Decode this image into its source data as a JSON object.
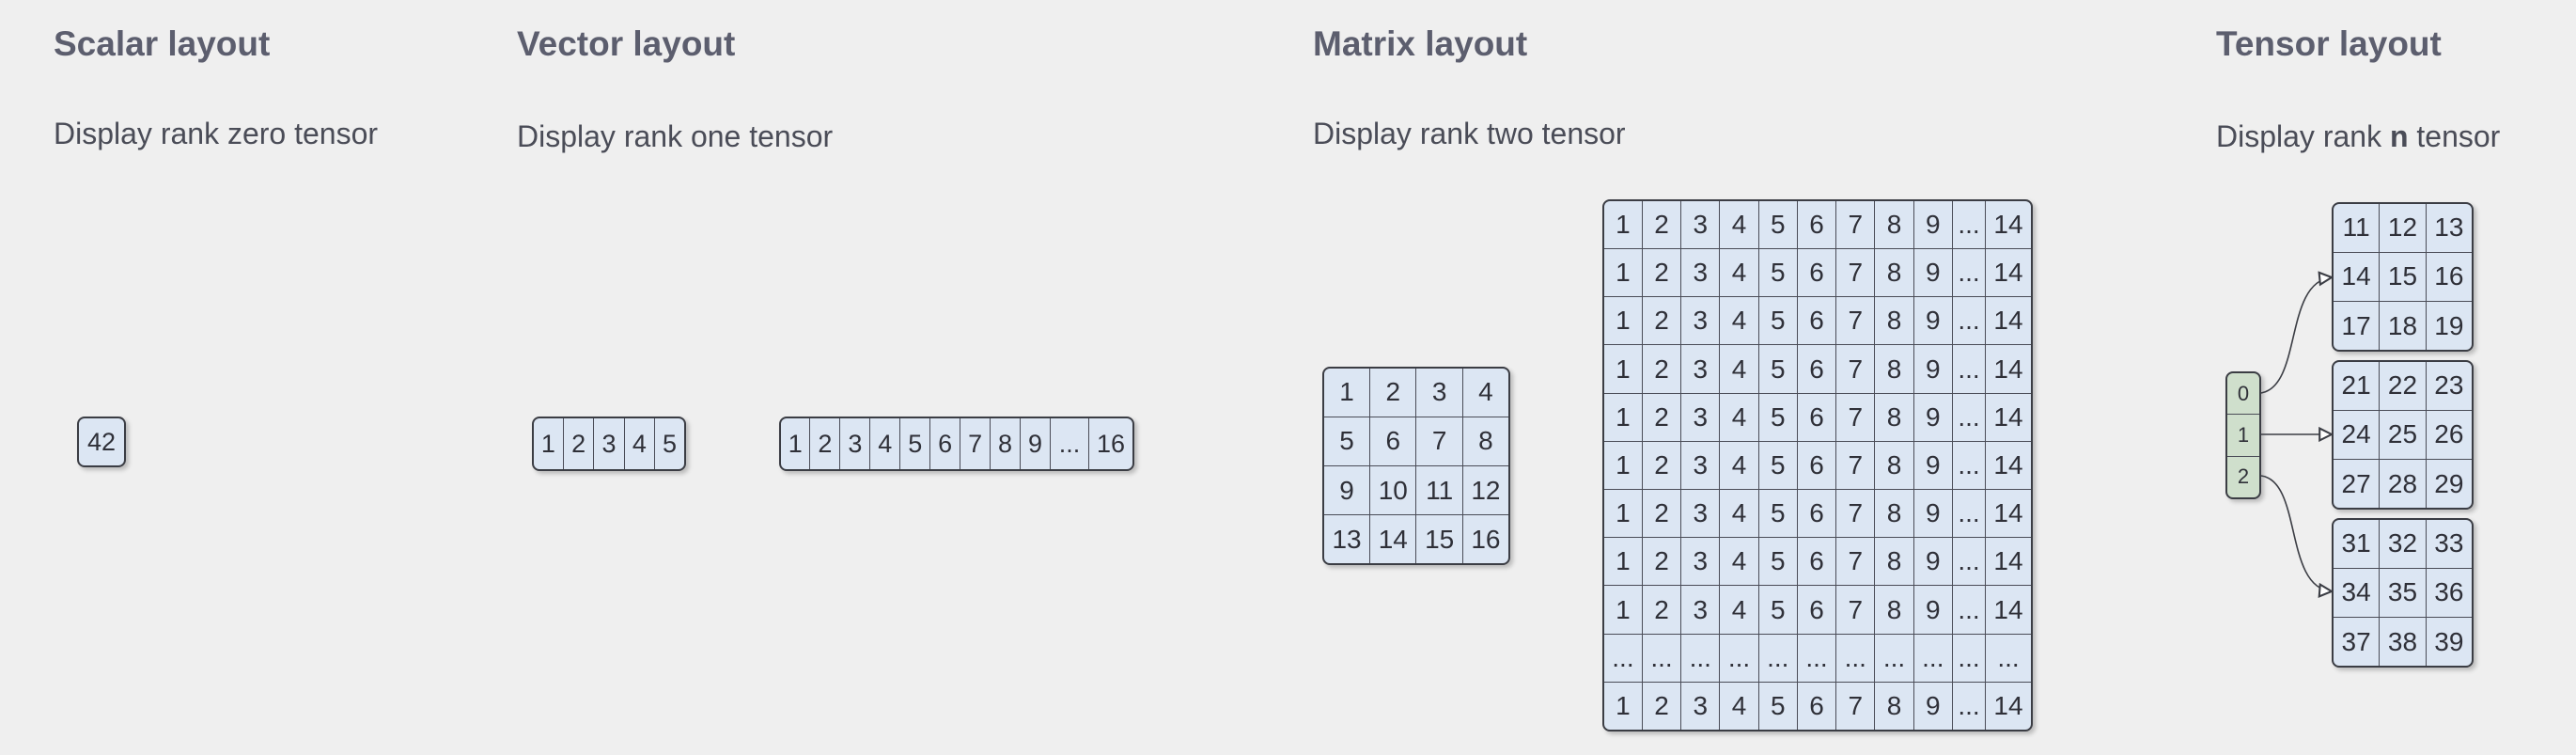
{
  "scalar": {
    "title": "Scalar layout",
    "subtitle": "Display rank zero tensor",
    "value": "42"
  },
  "vector": {
    "title": "Vector layout",
    "subtitle": "Display rank one tensor",
    "short": [
      "1",
      "2",
      "3",
      "4",
      "5"
    ],
    "long": [
      "1",
      "2",
      "3",
      "4",
      "5",
      "6",
      "7",
      "8",
      "9",
      "...",
      "16"
    ]
  },
  "matrix": {
    "title": "Matrix layout",
    "subtitle": "Display rank two tensor",
    "small": [
      [
        "1",
        "2",
        "3",
        "4"
      ],
      [
        "5",
        "6",
        "7",
        "8"
      ],
      [
        "9",
        "10",
        "11",
        "12"
      ],
      [
        "13",
        "14",
        "15",
        "16"
      ]
    ],
    "large_row": [
      "1",
      "2",
      "3",
      "4",
      "5",
      "6",
      "7",
      "8",
      "9",
      "...",
      "14"
    ],
    "large_ellipsis_row": [
      "...",
      "...",
      "...",
      "...",
      "...",
      "...",
      "...",
      "...",
      "...",
      "...",
      "..."
    ]
  },
  "tensor": {
    "title": "Tensor layout",
    "subtitle_prefix": "Display rank ",
    "subtitle_bold": "n",
    "subtitle_suffix": " tensor",
    "index": [
      "0",
      "1",
      "2"
    ],
    "slices": [
      [
        [
          "11",
          "12",
          "13"
        ],
        [
          "14",
          "15",
          "16"
        ],
        [
          "17",
          "18",
          "19"
        ]
      ],
      [
        [
          "21",
          "22",
          "23"
        ],
        [
          "24",
          "25",
          "26"
        ],
        [
          "27",
          "28",
          "29"
        ]
      ],
      [
        [
          "31",
          "32",
          "33"
        ],
        [
          "34",
          "35",
          "36"
        ],
        [
          "37",
          "38",
          "39"
        ]
      ]
    ]
  },
  "colors": {
    "cell_fill": "#dce6f3",
    "index_fill": "#cfdfcc",
    "border": "#3b3d44",
    "background": "#efefef"
  }
}
